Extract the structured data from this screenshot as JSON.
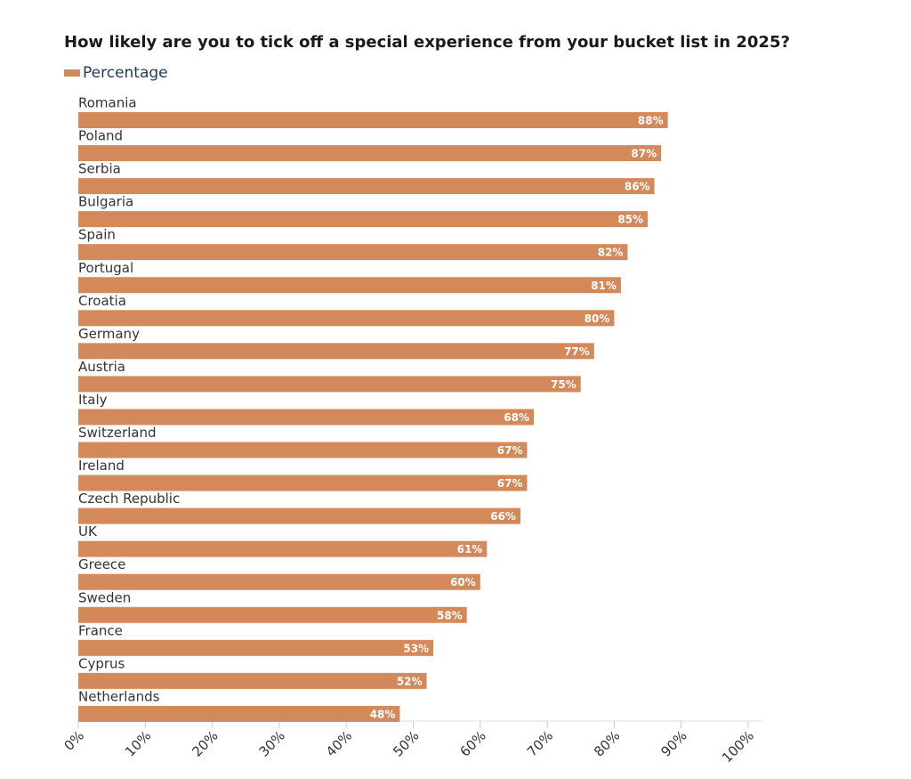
{
  "chart_data": {
    "type": "bar",
    "orientation": "horizontal",
    "title": "How likely are you to tick off a special experience from your bucket list in 2025?",
    "categories": [
      "Romania",
      "Poland",
      "Serbia",
      "Bulgaria",
      "Spain",
      "Portugal",
      "Croatia",
      "Germany",
      "Austria",
      "Italy",
      "Switzerland",
      "Ireland",
      "Czech Republic",
      "UK",
      "Greece",
      "Sweden",
      "France",
      "Cyprus",
      "Netherlands"
    ],
    "series": [
      {
        "name": "Percentage",
        "color": "#d4895a",
        "values": [
          88,
          87,
          86,
          85,
          82,
          81,
          80,
          77,
          75,
          68,
          67,
          67,
          66,
          61,
          60,
          58,
          53,
          52,
          48
        ],
        "value_labels": [
          "88%",
          "87%",
          "86%",
          "85%",
          "82%",
          "81%",
          "80%",
          "77%",
          "75%",
          "68%",
          "67%",
          "67%",
          "66%",
          "61%",
          "60%",
          "58%",
          "53%",
          "52%",
          "48%"
        ]
      }
    ],
    "xlim": [
      0,
      100
    ],
    "xticks": [
      {
        "value": 0,
        "label": "0%"
      },
      {
        "value": 10,
        "label": "10%"
      },
      {
        "value": 20,
        "label": "20%"
      },
      {
        "value": 30,
        "label": "30%"
      },
      {
        "value": 40,
        "label": "40%"
      },
      {
        "value": 50,
        "label": "50%"
      },
      {
        "value": 60,
        "label": "60%"
      },
      {
        "value": 70,
        "label": "70%"
      },
      {
        "value": 80,
        "label": "80%"
      },
      {
        "value": 90,
        "label": "90%"
      },
      {
        "value": 100,
        "label": "100%"
      }
    ],
    "grid": false,
    "legend": "top-left"
  }
}
